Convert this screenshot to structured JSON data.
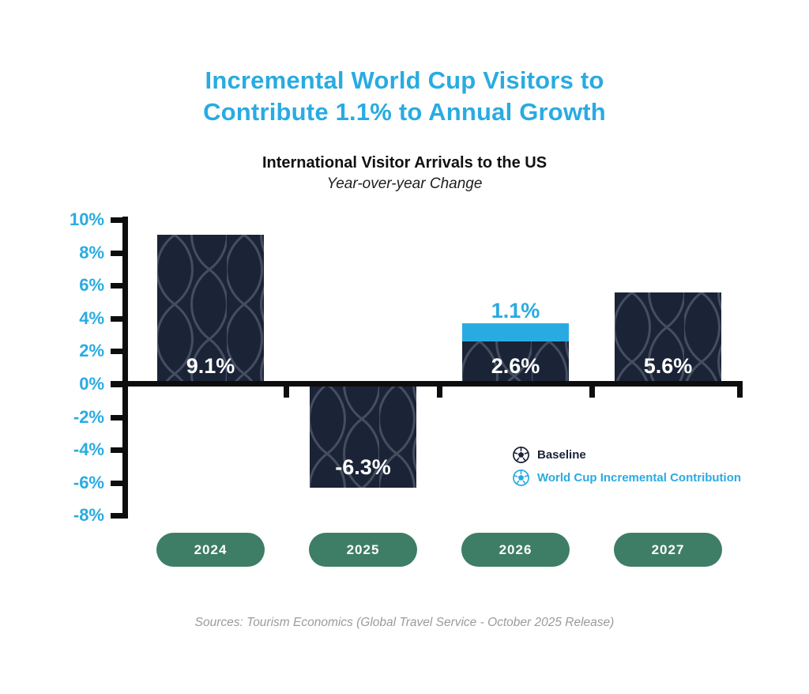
{
  "header": {
    "title_line1": "Incremental World Cup Visitors to",
    "title_line2": "Contribute 1.1% to Annual Growth",
    "subtitle": "International Visitor Arrivals to the US",
    "subtitle_note": "Year-over-year Change"
  },
  "legend": {
    "baseline_label": "Baseline",
    "incremental_label": "World Cup Incremental Contribution",
    "baseline_icon": "soccer-ball-icon",
    "incremental_icon": "soccer-ball-icon"
  },
  "footer": {
    "source": "Sources: Tourism Economics (Global Travel Service - October 2025 Release)"
  },
  "colors": {
    "accent_blue": "#29ABE2",
    "bar_navy": "#1B2337",
    "net_line": "#4C5568",
    "pill_green": "#3E7D66",
    "axis_black": "#0D0D0D",
    "value_label_white": "#FFFFFF",
    "source_gray": "#9B9B9B"
  },
  "chart_data": {
    "type": "bar",
    "stacked": true,
    "title": "Incremental World Cup Visitors to Contribute 1.1% to Annual Growth",
    "subtitle": "International Visitor Arrivals to the US",
    "yoy_note": "Year-over-year Change",
    "categories": [
      "2024",
      "2025",
      "2026",
      "2027"
    ],
    "series": [
      {
        "name": "Baseline",
        "values": [
          9.1,
          -6.3,
          2.6,
          5.6
        ]
      },
      {
        "name": "World Cup Incremental Contribution",
        "values": [
          0,
          0,
          1.1,
          0
        ]
      }
    ],
    "bar_labels": [
      "9.1%",
      "-6.3%",
      "2.6%",
      "5.6%"
    ],
    "increment_label": "1.1%",
    "y_ticks": [
      10,
      8,
      6,
      4,
      2,
      0,
      -2,
      -4,
      -6,
      -8
    ],
    "y_tick_suffix": "%",
    "ylim": [
      -8,
      10
    ],
    "xlabel": "",
    "ylabel": "",
    "grid": false,
    "legend_position": "inside-right-below-axis"
  }
}
